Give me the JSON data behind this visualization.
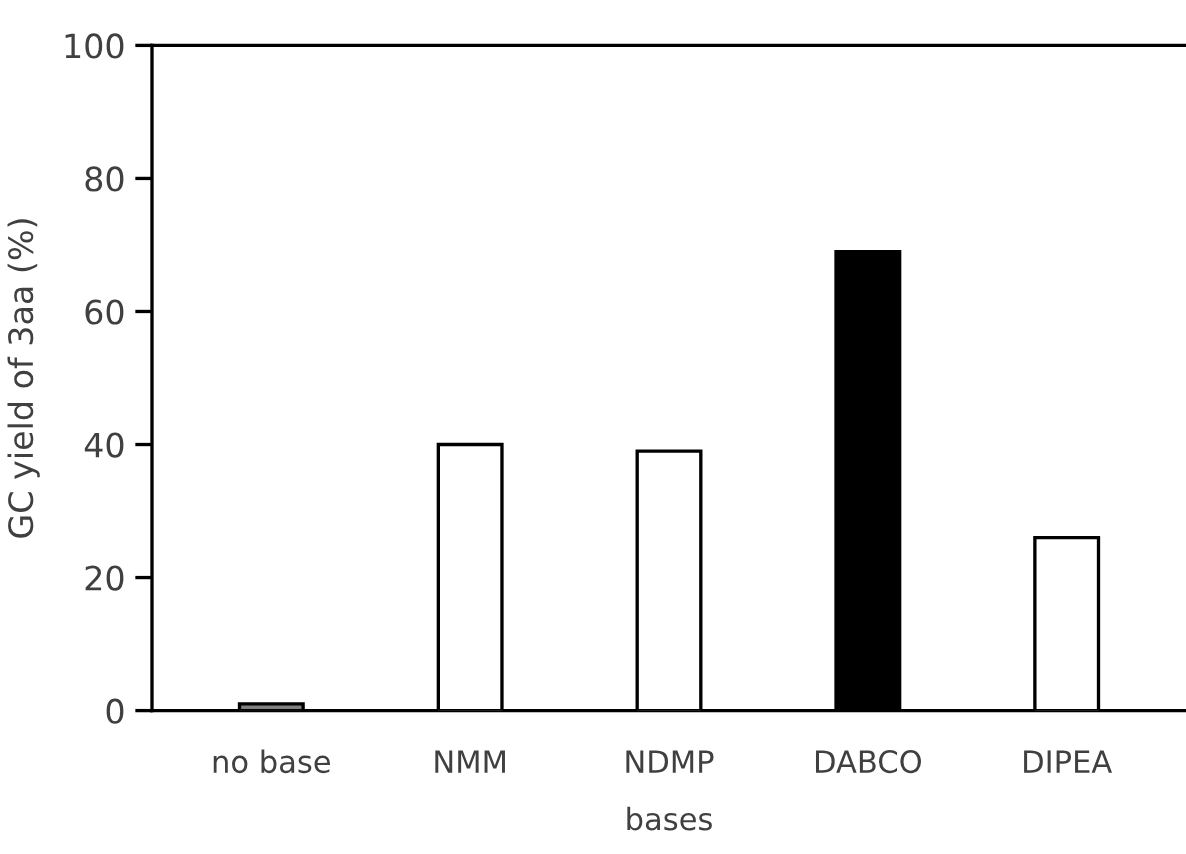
{
  "chart_data": {
    "type": "bar",
    "xlabel": "bases",
    "ylabel": "GC yield of 3aa (%)",
    "categories": [
      "no base",
      "NMM",
      "NDMP",
      "DABCO",
      "DIPEA"
    ],
    "values": [
      1,
      40,
      39,
      69,
      26
    ],
    "colors": [
      "#808080",
      "#ffffff",
      "#ffffff",
      "#000000",
      "#ffffff"
    ],
    "ylim": [
      0,
      100
    ],
    "yticks": [
      0,
      20,
      40,
      60,
      80,
      100
    ],
    "grid": false,
    "legend": false
  }
}
